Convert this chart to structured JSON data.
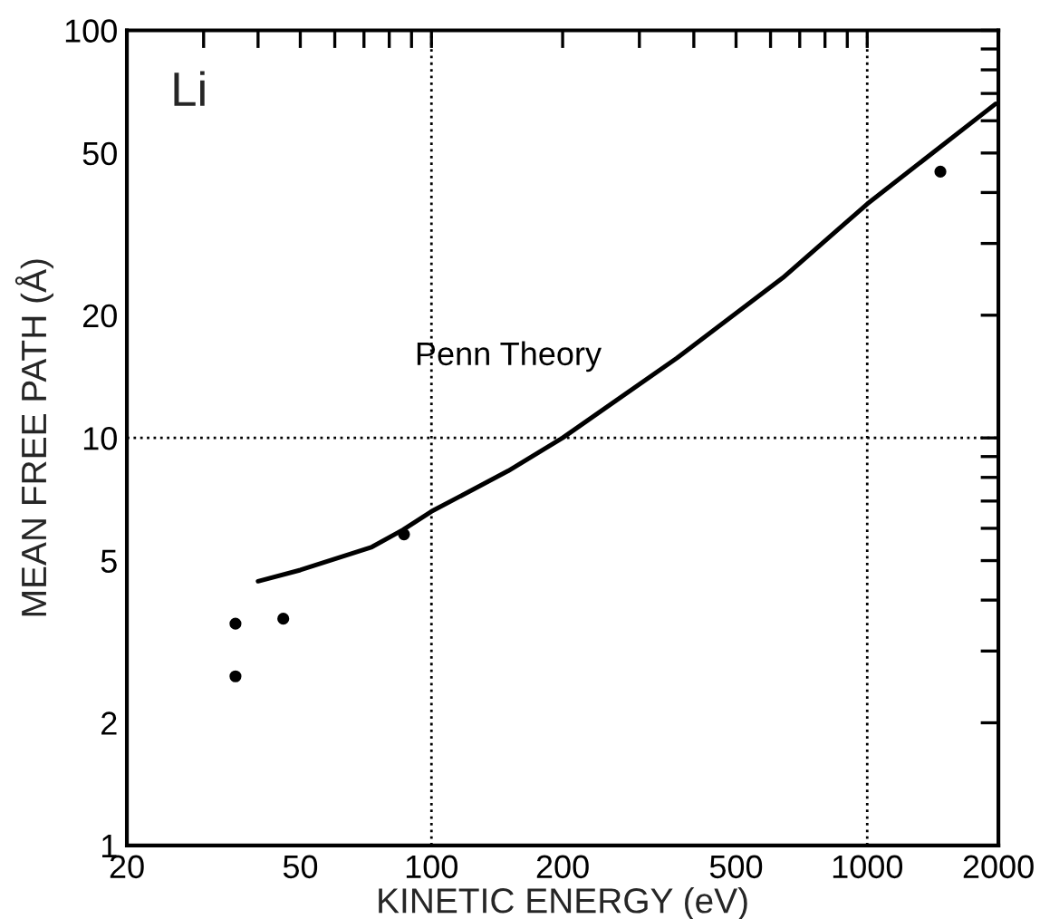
{
  "chart_data": {
    "type": "scatter",
    "xlabel": "KINETIC ENERGY (eV)",
    "ylabel": "MEAN FREE PATH (Å)",
    "log": "xy",
    "grid": false,
    "annotations": [
      "Li"
    ],
    "xlim": [
      20,
      2000
    ],
    "ylim": [
      1,
      100
    ],
    "xticks": [
      20,
      {
        "value": 30,
        "label": null
      },
      {
        "value": 40,
        "label": null
      },
      50,
      {
        "value": 60,
        "label": null
      },
      {
        "value": 70,
        "label": null
      },
      {
        "value": 80,
        "label": null
      },
      {
        "value": 90,
        "label": null
      },
      100,
      200,
      {
        "value": 300,
        "label": null
      },
      {
        "value": 400,
        "label": null
      },
      500,
      {
        "value": 600,
        "label": null
      },
      {
        "value": 700,
        "label": null
      },
      {
        "value": 800,
        "label": null
      },
      {
        "value": 900,
        "label": null
      },
      1000,
      2000
    ],
    "yticks": [
      1,
      2,
      {
        "value": 3,
        "label": null
      },
      {
        "value": 4,
        "label": null
      },
      5,
      {
        "value": 6,
        "label": null
      },
      {
        "value": 7,
        "label": null
      },
      {
        "value": 8,
        "label": null
      },
      {
        "value": 9,
        "label": null
      },
      10,
      20,
      {
        "value": 30,
        "label": null
      },
      {
        "value": 40,
        "label": null
      },
      50,
      {
        "value": 60,
        "label": null
      },
      {
        "value": 70,
        "label": null
      },
      {
        "value": 80,
        "label": null
      },
      {
        "value": 90,
        "label": null
      },
      100
    ],
    "ref_lines": [
      {
        "axis": "x",
        "value": 100,
        "line_style": "dotted",
        "color": "#000000"
      },
      {
        "axis": "x",
        "value": 1000,
        "line_style": "dotted",
        "color": "#000000"
      },
      {
        "axis": "y",
        "value": 10,
        "line_style": "dotted",
        "color": "#000000"
      }
    ],
    "series": [
      {
        "name": "Penn Theory",
        "type": "line",
        "marker": "none",
        "line_style": "solid",
        "color": "#000000",
        "x": [
          40,
          50,
          73,
          86,
          100,
          150,
          200,
          366,
          640,
          1000,
          1970
        ],
        "values": [
          4.45,
          4.74,
          5.4,
          5.95,
          6.6,
          8.3,
          10,
          15.7,
          24.7,
          37.5,
          66
        ]
      },
      {
        "marker": "circle",
        "color": "#000000",
        "x": [
          35.5,
          35.5,
          45.7,
          86.5,
          1472
        ],
        "values": [
          3.5,
          2.6,
          3.6,
          5.8,
          45
        ]
      }
    ]
  }
}
